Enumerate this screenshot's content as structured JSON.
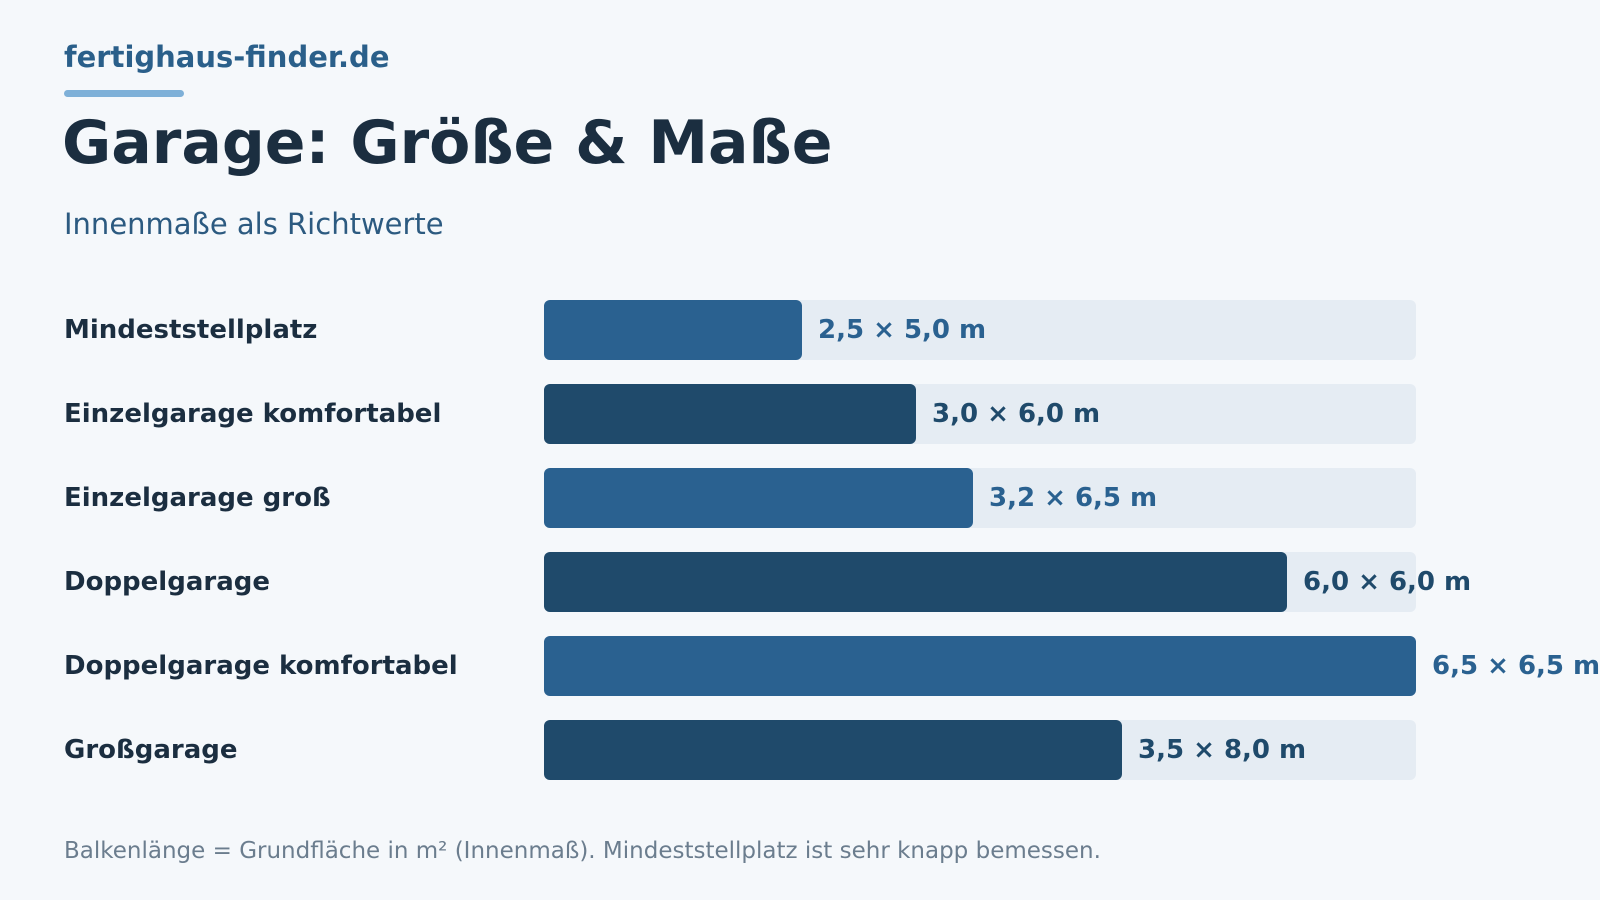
{
  "header": {
    "brand": "fertighaus-finder.de",
    "title": "Garage: Größe & Maße",
    "subtitle": "Innenmaße als Richtwerte"
  },
  "footnote": "Balkenlänge = Grundfläche in m² (Innenmaß). Mindeststellplatz ist sehr knapp bemessen.",
  "colors": {
    "background": "#f5f8fb",
    "track": "#e5ecf3",
    "bar_light": "#2a6190",
    "bar_dark": "#1f4a6b",
    "brand": "#2a5f8a",
    "brand_underline": "#7eb0d8"
  },
  "chart_data": {
    "type": "bar",
    "orientation": "horizontal",
    "categories": [
      "Mindeststellplatz",
      "Einzelgarage komfortabel",
      "Einzelgarage groß",
      "Doppelgarage",
      "Doppelgarage komfortabel",
      "Großgarage"
    ],
    "value_labels": [
      "2,5 × 5,0 m",
      "3,0 × 6,0 m",
      "3,2 × 6,5 m",
      "6,0 × 6,0 m",
      "6,5 × 6,5 m",
      "3,5 × 8,0 m"
    ],
    "values": [
      12.5,
      18.0,
      20.8,
      36.0,
      42.25,
      28.0
    ],
    "xlim": [
      0,
      42.25
    ],
    "bar_colors": [
      "#2a6190",
      "#1f4a6b",
      "#2a6190",
      "#1f4a6b",
      "#2a6190",
      "#1f4a6b"
    ],
    "grid": false
  }
}
